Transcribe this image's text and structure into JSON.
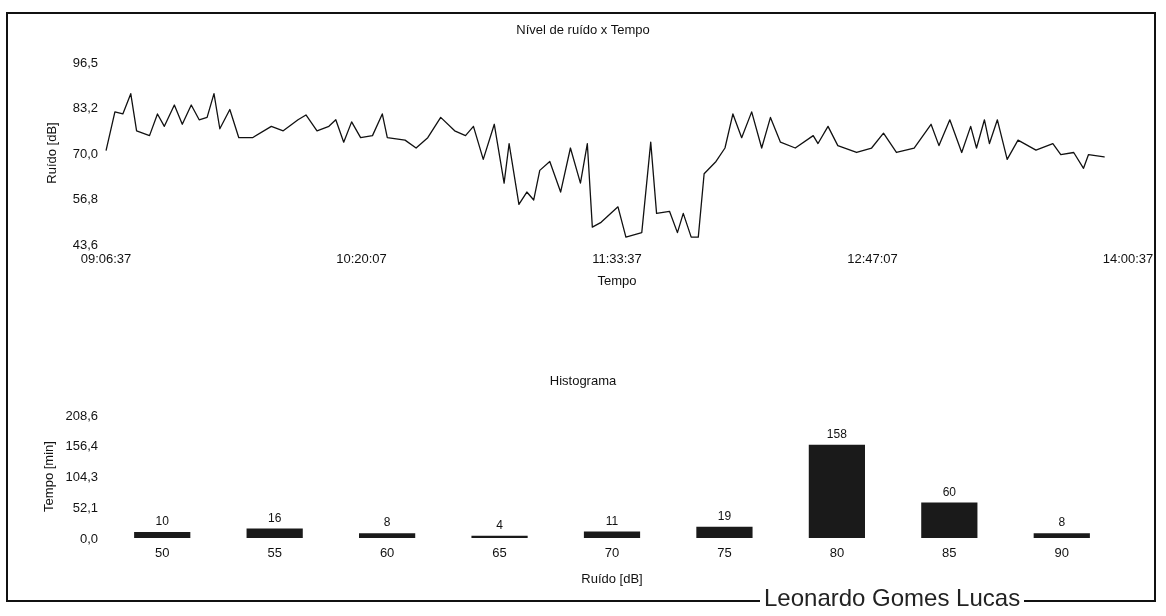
{
  "chart_data": [
    {
      "type": "line",
      "title": "Nível de ruído x Tempo",
      "xlabel": "Tempo",
      "ylabel": "Ruído [dB]",
      "x": [
        9.111,
        9.153,
        9.191,
        9.229,
        9.257,
        9.319,
        9.357,
        9.39,
        9.438,
        9.476,
        9.519,
        9.557,
        9.595,
        9.628,
        9.656,
        9.704,
        9.747,
        9.813,
        9.903,
        9.96,
        10.031,
        10.069,
        10.122,
        10.179,
        10.212,
        10.25,
        10.288,
        10.331,
        10.388,
        10.435,
        10.459,
        10.544,
        10.597,
        10.653,
        10.715,
        10.782,
        10.834,
        10.872,
        10.919,
        10.972,
        11.019,
        11.043,
        11.09,
        11.128,
        11.161,
        11.19,
        11.238,
        11.29,
        11.337,
        11.385,
        11.418,
        11.442,
        11.484,
        11.565,
        11.603,
        11.679,
        11.722,
        11.75,
        11.812,
        11.85,
        11.878,
        11.916,
        11.95,
        11.978,
        12.035,
        12.078,
        12.116,
        12.158,
        12.206,
        12.254,
        12.296,
        12.344,
        12.415,
        12.501,
        12.524,
        12.572,
        12.619,
        12.709,
        12.781,
        12.838,
        12.9,
        12.985,
        13.066,
        13.104,
        13.156,
        13.213,
        13.256,
        13.284,
        13.322,
        13.346,
        13.384,
        13.431,
        13.483,
        13.569,
        13.65,
        13.688,
        13.75,
        13.797,
        13.821,
        13.896
      ],
      "series": [
        {
          "color": "#111111",
          "values": [
            70.9,
            82.0,
            81.4,
            87.3,
            76.5,
            75.1,
            81.4,
            77.8,
            84.0,
            78.4,
            84.0,
            79.7,
            80.4,
            87.3,
            77.1,
            82.7,
            74.5,
            74.5,
            77.8,
            76.5,
            79.7,
            81.1,
            76.5,
            77.8,
            79.7,
            73.2,
            79.1,
            74.5,
            75.1,
            81.4,
            74.5,
            73.8,
            71.5,
            74.5,
            80.4,
            76.5,
            75.1,
            77.8,
            68.2,
            78.4,
            61.3,
            72.8,
            55.1,
            58.7,
            56.4,
            65.0,
            67.6,
            58.7,
            71.5,
            61.3,
            72.8,
            48.5,
            49.9,
            54.4,
            45.6,
            46.9,
            73.2,
            52.5,
            53.1,
            46.9,
            52.5,
            45.6,
            45.6,
            64.0,
            67.6,
            71.5,
            81.4,
            74.5,
            82.0,
            71.5,
            80.4,
            73.2,
            71.5,
            75.1,
            72.8,
            77.8,
            72.2,
            70.2,
            71.5,
            75.8,
            70.2,
            71.5,
            78.4,
            72.2,
            79.7,
            70.2,
            77.8,
            71.5,
            79.7,
            72.8,
            79.7,
            68.2,
            73.8,
            70.9,
            72.8,
            69.6,
            70.2,
            65.6,
            69.6,
            68.9
          ]
        }
      ],
      "xlim": [
        9.110278,
        14.010278
      ],
      "xticks": [
        {
          "value": 9.110278,
          "label": "09:06:37"
        },
        {
          "value": 10.335278,
          "label": "10:20:07"
        },
        {
          "value": 11.560278,
          "label": "11:33:37"
        },
        {
          "value": 12.785278,
          "label": "12:47:07"
        },
        {
          "value": 14.010278,
          "label": "14:00:37"
        }
      ],
      "ylim": [
        43.6,
        96.5
      ],
      "yticks": [
        {
          "value": 43.6,
          "label": "43,6"
        },
        {
          "value": 56.8,
          "label": "56,8"
        },
        {
          "value": 70.0,
          "label": "70,0"
        },
        {
          "value": 83.2,
          "label": "83,2"
        },
        {
          "value": 96.5,
          "label": "96,5"
        }
      ],
      "marker": "none",
      "line_style": "solid"
    },
    {
      "type": "bar",
      "title": "Histograma",
      "xlabel": "Ruído [dB]",
      "ylabel": "Tempo [min]",
      "categories": [
        "50",
        "55",
        "60",
        "65",
        "70",
        "75",
        "80",
        "85",
        "90"
      ],
      "values": [
        10,
        16,
        8,
        4,
        11,
        19,
        158,
        60,
        8
      ],
      "color": "#1a1a1a",
      "data_labels": true,
      "ylim": [
        0,
        208.6
      ],
      "yticks": [
        {
          "value": 0,
          "label": "0,0"
        },
        {
          "value": 52.1,
          "label": "52,1"
        },
        {
          "value": 104.3,
          "label": "104,3"
        },
        {
          "value": 156.4,
          "label": "156,4"
        },
        {
          "value": 208.6,
          "label": "208,6"
        }
      ],
      "annotations": [
        "Leonardo Gomes Lucas"
      ]
    }
  ]
}
